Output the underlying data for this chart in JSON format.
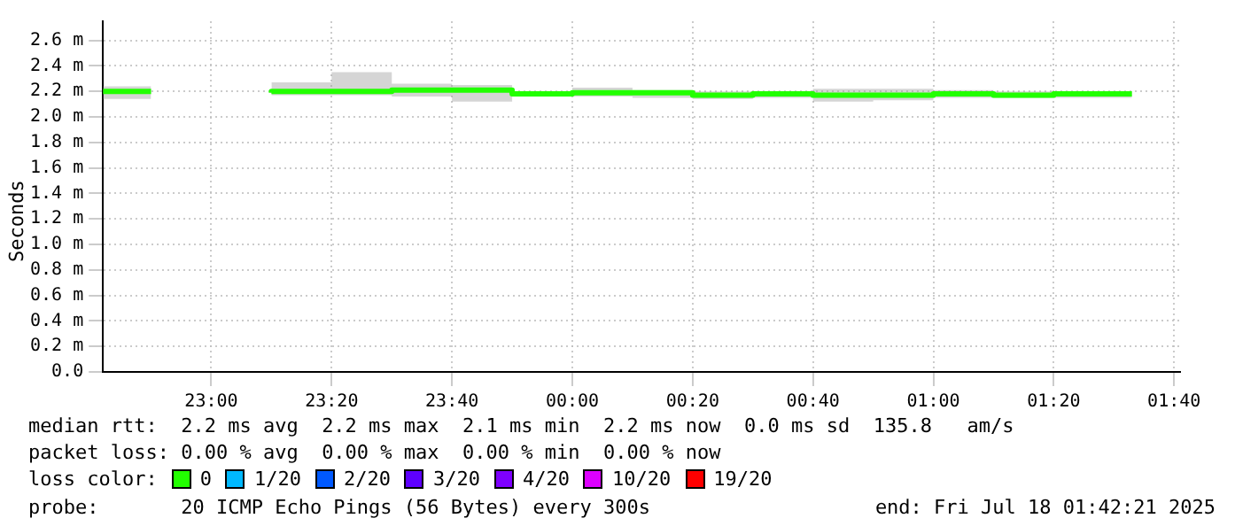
{
  "chart_data": {
    "type": "step",
    "ylabel": "Seconds",
    "x": [
      "2025-07-17T22:42",
      "2025-07-17T22:50",
      "2025-07-17T23:00",
      "2025-07-17T23:10",
      "2025-07-17T23:20",
      "2025-07-17T23:30",
      "2025-07-17T23:40",
      "2025-07-17T23:50",
      "2025-07-18T00:00",
      "2025-07-18T00:10",
      "2025-07-18T00:20",
      "2025-07-18T00:30",
      "2025-07-18T00:40",
      "2025-07-18T00:50",
      "2025-07-18T01:00",
      "2025-07-18T01:10",
      "2025-07-18T01:20",
      "2025-07-18T01:30",
      "2025-07-18T01:33"
    ],
    "xlim": [
      "2025-07-17T22:42",
      "2025-07-18T01:41"
    ],
    "xticks": [
      {
        "value": "2025-07-17T23:00",
        "label": "23:00"
      },
      {
        "value": "2025-07-17T23:20",
        "label": "23:20"
      },
      {
        "value": "2025-07-17T23:40",
        "label": "23:40"
      },
      {
        "value": "2025-07-18T00:00",
        "label": "00:00"
      },
      {
        "value": "2025-07-18T00:20",
        "label": "00:20"
      },
      {
        "value": "2025-07-18T00:40",
        "label": "00:40"
      },
      {
        "value": "2025-07-18T01:00",
        "label": "01:00"
      },
      {
        "value": "2025-07-18T01:20",
        "label": "01:20"
      },
      {
        "value": "2025-07-18T01:40",
        "label": "01:40"
      }
    ],
    "ylim": [
      0,
      2.75
    ],
    "yticks": [
      {
        "value": 0,
        "label": "0.0"
      },
      {
        "value": 0.2,
        "label": "0.2 m"
      },
      {
        "value": 0.4,
        "label": "0.4 m"
      },
      {
        "value": 0.6,
        "label": "0.6 m"
      },
      {
        "value": 0.8,
        "label": "0.8 m"
      },
      {
        "value": 1,
        "label": "1.0 m"
      },
      {
        "value": 1.2,
        "label": "1.2 m"
      },
      {
        "value": 1.4,
        "label": "1.4 m"
      },
      {
        "value": 1.6,
        "label": "1.6 m"
      },
      {
        "value": 1.8,
        "label": "1.8 m"
      },
      {
        "value": 2,
        "label": "2.0 m"
      },
      {
        "value": 2.2,
        "label": "2.2 m"
      },
      {
        "value": 2.4,
        "label": "2.4 m"
      },
      {
        "value": 2.6,
        "label": "2.6 m"
      }
    ],
    "legend_title": "loss color:",
    "series": [
      {
        "name": "0",
        "color": "#22ff00",
        "values": [
          2.2,
          2.2,
          null,
          2.19,
          2.2,
          2.2,
          2.21,
          2.21,
          2.18,
          2.19,
          2.19,
          2.17,
          2.18,
          2.17,
          2.17,
          2.18,
          2.17,
          2.18,
          2.18
        ],
        "lower": [
          2.17,
          2.14,
          null,
          2.15,
          2.17,
          2.17,
          2.16,
          2.12,
          2.16,
          2.16,
          2.15,
          2.14,
          2.15,
          2.12,
          2.13,
          2.15,
          2.15,
          2.15,
          2.15
        ],
        "upper": [
          2.25,
          2.24,
          null,
          2.28,
          2.27,
          2.35,
          2.26,
          2.25,
          2.2,
          2.23,
          2.21,
          2.2,
          2.2,
          2.22,
          2.22,
          2.21,
          2.2,
          2.2,
          2.2
        ]
      },
      {
        "name": "1/20",
        "color": "#00b8ff",
        "values": [
          null,
          null,
          null,
          null,
          null,
          null,
          null,
          null,
          null,
          null,
          null,
          null,
          null,
          null,
          null,
          null,
          null,
          null,
          null
        ]
      },
      {
        "name": "2/20",
        "color": "#0059ff",
        "values": [
          null,
          null,
          null,
          null,
          null,
          null,
          null,
          null,
          null,
          null,
          null,
          null,
          null,
          null,
          null,
          null,
          null,
          null,
          null
        ]
      },
      {
        "name": "3/20",
        "color": "#5e00ff",
        "values": [
          null,
          null,
          null,
          null,
          null,
          null,
          null,
          null,
          null,
          null,
          null,
          null,
          null,
          null,
          null,
          null,
          null,
          null,
          null
        ]
      },
      {
        "name": "4/20",
        "color": "#7e00ff",
        "values": [
          null,
          null,
          null,
          null,
          null,
          null,
          null,
          null,
          null,
          null,
          null,
          null,
          null,
          null,
          null,
          null,
          null,
          null,
          null
        ]
      },
      {
        "name": "10/20",
        "color": "#dd00ff",
        "values": [
          null,
          null,
          null,
          null,
          null,
          null,
          null,
          null,
          null,
          null,
          null,
          null,
          null,
          null,
          null,
          null,
          null,
          null,
          null
        ]
      },
      {
        "name": "19/20",
        "color": "#ff0000",
        "values": [
          null,
          null,
          null,
          null,
          null,
          null,
          null,
          null,
          null,
          null,
          null,
          null,
          null,
          null,
          null,
          null,
          null,
          null,
          null
        ]
      }
    ],
    "grid": true,
    "legend": "bottom",
    "marker": "none",
    "annotations": [
      "median rtt:  2.2 ms avg  2.2 ms max  2.1 ms min  2.2 ms now  0.0 ms sd  135.8   am/s",
      "packet loss: 0.00 % avg  0.00 % max  0.00 % min  0.00 % now",
      "probe:       20 ICMP Echo Pings (56 Bytes) every 300s",
      "end: Fri Jul 18 01:42:21 2025"
    ]
  }
}
